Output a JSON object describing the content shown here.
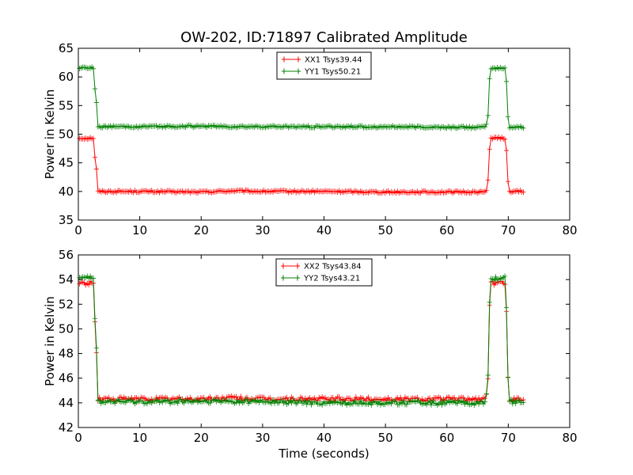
{
  "chart_data": [
    {
      "type": "line",
      "title": "OW-202, ID:71897 Calibrated Amplitude",
      "xlabel": "",
      "ylabel": "Power in Kelvin",
      "xlim": [
        0,
        80
      ],
      "ylim": [
        35,
        65
      ],
      "xticks": [
        "0",
        "10",
        "20",
        "30",
        "40",
        "50",
        "60",
        "70",
        "80"
      ],
      "yticks": [
        "35",
        "40",
        "45",
        "50",
        "55",
        "60",
        "65"
      ],
      "legend_position": "top-center",
      "series": [
        {
          "name": "XX1 Tsys39.44",
          "color": "#ff0000",
          "x": [
            0.2,
            2.6,
            2.7,
            2.8,
            2.9,
            3.0,
            3.1,
            10,
            20,
            25,
            30,
            40,
            50,
            60,
            66.4,
            66.6,
            66.8,
            67.0,
            69.5,
            69.7,
            69.8,
            70.0,
            72.6
          ],
          "y": [
            49.3,
            49.3,
            46.0,
            44.5,
            44.0,
            43.7,
            40.0,
            40.0,
            39.9,
            40.1,
            40.0,
            40.0,
            39.9,
            39.9,
            39.9,
            41.7,
            42.1,
            49.3,
            49.3,
            47.0,
            46.6,
            40.0,
            40.0
          ]
        },
        {
          "name": "YY1 Tsys50.21",
          "color": "#008000",
          "x": [
            0.2,
            2.6,
            2.7,
            2.8,
            2.9,
            3.0,
            3.1,
            10,
            20,
            25,
            30,
            40,
            50,
            60,
            66.4,
            66.6,
            66.8,
            67.0,
            69.5,
            69.7,
            69.8,
            70.0,
            72.6
          ],
          "y": [
            61.6,
            61.6,
            58.0,
            56.0,
            55.5,
            55.2,
            51.3,
            51.3,
            51.4,
            51.3,
            51.3,
            51.3,
            51.3,
            51.2,
            51.2,
            53.2,
            53.6,
            61.5,
            61.5,
            59.2,
            58.9,
            51.2,
            51.2
          ]
        }
      ]
    },
    {
      "type": "line",
      "title": "",
      "xlabel": "Time (seconds)",
      "ylabel": "Power in Kelvin",
      "xlim": [
        0,
        80
      ],
      "ylim": [
        42,
        56
      ],
      "xticks": [
        "0",
        "10",
        "20",
        "30",
        "40",
        "50",
        "60",
        "70",
        "80"
      ],
      "yticks": [
        "42",
        "44",
        "46",
        "48",
        "50",
        "52",
        "54",
        "56"
      ],
      "legend_position": "top-center",
      "series": [
        {
          "name": "XX2 Tsys43.84",
          "color": "#ff0000",
          "x": [
            0.2,
            2.6,
            2.7,
            2.8,
            2.9,
            3.0,
            3.1,
            10,
            20,
            25,
            30,
            40,
            50,
            60,
            66.4,
            66.6,
            66.8,
            67.0,
            69.5,
            69.7,
            69.8,
            70.0,
            72.6
          ],
          "y": [
            53.7,
            53.7,
            50.5,
            48.5,
            48.3,
            48.0,
            44.3,
            44.3,
            44.3,
            44.4,
            44.3,
            44.3,
            44.3,
            44.3,
            44.3,
            46.2,
            46.0,
            53.7,
            53.7,
            51.6,
            51.5,
            44.3,
            44.3
          ]
        },
        {
          "name": "YY2 Tsys43.21",
          "color": "#008000",
          "x": [
            0.2,
            2.6,
            2.7,
            2.8,
            2.9,
            3.0,
            3.1,
            10,
            20,
            25,
            30,
            40,
            50,
            60,
            66.4,
            66.6,
            66.8,
            67.0,
            69.5,
            69.7,
            69.8,
            70.0,
            72.6
          ],
          "y": [
            54.3,
            54.2,
            50.8,
            48.8,
            48.6,
            48.3,
            44.1,
            44.1,
            44.1,
            44.1,
            44.1,
            44.0,
            44.0,
            44.0,
            44.0,
            46.4,
            46.1,
            54.1,
            54.1,
            51.7,
            51.6,
            44.1,
            44.1
          ]
        }
      ]
    }
  ]
}
